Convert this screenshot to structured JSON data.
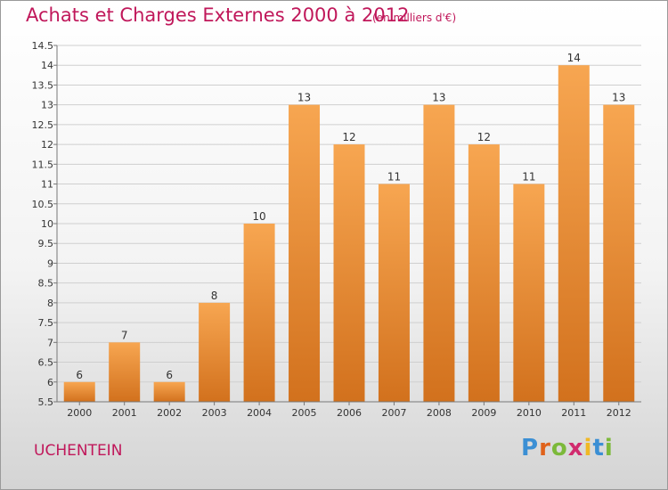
{
  "header": {
    "title": "Achats et Charges Externes 2000 à 2012",
    "unit": "(en milliers d'€)"
  },
  "footer": {
    "commune": "UCHENTEIN",
    "logo_text": "Proxiti",
    "logo_letters": [
      "P",
      "r",
      "o",
      "x",
      "i",
      "t",
      "i"
    ],
    "logo_colors": [
      "#3b8fd4",
      "#e0621b",
      "#7cb93a",
      "#d12b6e",
      "#f0b824",
      "#3b8fd4",
      "#7cb93a"
    ]
  },
  "colors": {
    "bar_light": "#f7a651",
    "bar_dark": "#d2711d",
    "grid": "#cfcfcf",
    "axis": "#777777",
    "text": "#333333"
  },
  "chart_data": {
    "type": "bar",
    "title": "Achats et Charges Externes 2000 à 2012",
    "subtitle": "(en milliers d'€)",
    "categories": [
      "2000",
      "2001",
      "2002",
      "2003",
      "2004",
      "2005",
      "2006",
      "2007",
      "2008",
      "2009",
      "2010",
      "2011",
      "2012"
    ],
    "values": [
      6,
      7,
      6,
      8,
      10,
      13,
      12,
      11,
      13,
      12,
      11,
      14,
      13
    ],
    "ylim": [
      5.5,
      14.5
    ],
    "yticks": [
      "5.5",
      "6",
      "6.5",
      "7",
      "7.5",
      "8",
      "8.5",
      "9",
      "9.5",
      "10",
      "10.5",
      "11",
      "11.5",
      "12",
      "12.5",
      "13",
      "13.5",
      "14",
      "14.5"
    ],
    "grid": true,
    "xlabel": "",
    "ylabel": ""
  }
}
